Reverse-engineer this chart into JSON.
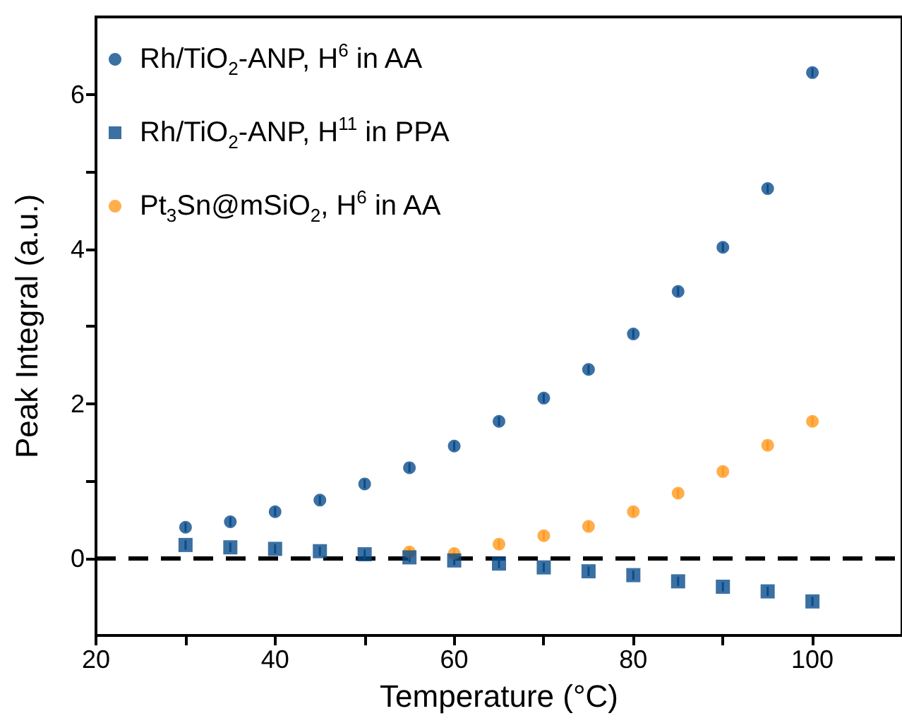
{
  "chart_data": {
    "type": "scatter",
    "xlabel": "Temperature (°C)",
    "ylabel": "Peak Integral (a.u.)",
    "xlim": [
      20,
      110
    ],
    "xticks": [
      20,
      {
        "value": 30,
        "label": null
      },
      40,
      {
        "value": 50,
        "label": null
      },
      60,
      {
        "value": 70,
        "label": null
      },
      80,
      {
        "value": 90,
        "label": null
      },
      100
    ],
    "ylim": [
      -1,
      7
    ],
    "yticks": [
      0,
      {
        "value": 1,
        "label": null
      },
      2,
      {
        "value": 3,
        "label": null
      },
      4,
      {
        "value": 5,
        "label": null
      },
      6
    ],
    "grid": false,
    "legend": "top left",
    "ref_lines": [
      {
        "axis": "y",
        "value": 0,
        "color": "#000000",
        "line_style": "dashed"
      }
    ],
    "series": [
      {
        "name": "Rh/TiO$_{2}$-ANP, H$^{6}$ in AA",
        "color": "#0a4c8c",
        "marker": "circle",
        "x": [
          30,
          35,
          40,
          45,
          50,
          55,
          60,
          65,
          70,
          75,
          80,
          85,
          90,
          95,
          100
        ],
        "values": [
          0.4,
          0.47,
          0.6,
          0.75,
          0.96,
          1.17,
          1.45,
          1.77,
          2.07,
          2.44,
          2.9,
          3.45,
          4.02,
          4.78,
          6.28
        ],
        "errors": [
          0.06,
          0.06,
          0.06,
          0.06,
          0.06,
          0.06,
          0.06,
          0.06,
          0.06,
          0.06,
          0.06,
          0.06,
          0.06,
          0.06,
          0.06
        ]
      },
      {
        "name": "Rh/TiO$_{2}$-ANP, H$^{11}$ in PPA",
        "color": "#0a4c8c",
        "marker": "square",
        "x": [
          30,
          35,
          40,
          45,
          50,
          55,
          60,
          65,
          70,
          75,
          80,
          85,
          90,
          95,
          100
        ],
        "values": [
          0.17,
          0.14,
          0.12,
          0.09,
          0.05,
          0.01,
          -0.03,
          -0.07,
          -0.12,
          -0.17,
          -0.22,
          -0.3,
          -0.37,
          -0.43,
          -0.56
        ],
        "errors": [
          0.06,
          0.06,
          0.06,
          0.06,
          0.06,
          0.06,
          0.06,
          0.06,
          0.06,
          0.06,
          0.06,
          0.06,
          0.06,
          0.06,
          0.06
        ]
      },
      {
        "name": "Pt$_{3}$Sn@mSiO$_{2}$, H$^{6}$ in AA",
        "color": "#ff9a1e",
        "marker": "circle",
        "x": [
          55,
          60,
          65,
          70,
          75,
          80,
          85,
          90,
          95,
          100
        ],
        "values": [
          0.08,
          0.06,
          0.18,
          0.29,
          0.41,
          0.6,
          0.84,
          1.12,
          1.46,
          1.77
        ],
        "errors": [
          0.06,
          0.06,
          0.06,
          0.06,
          0.06,
          0.06,
          0.06,
          0.06,
          0.06,
          0.06
        ]
      }
    ]
  }
}
